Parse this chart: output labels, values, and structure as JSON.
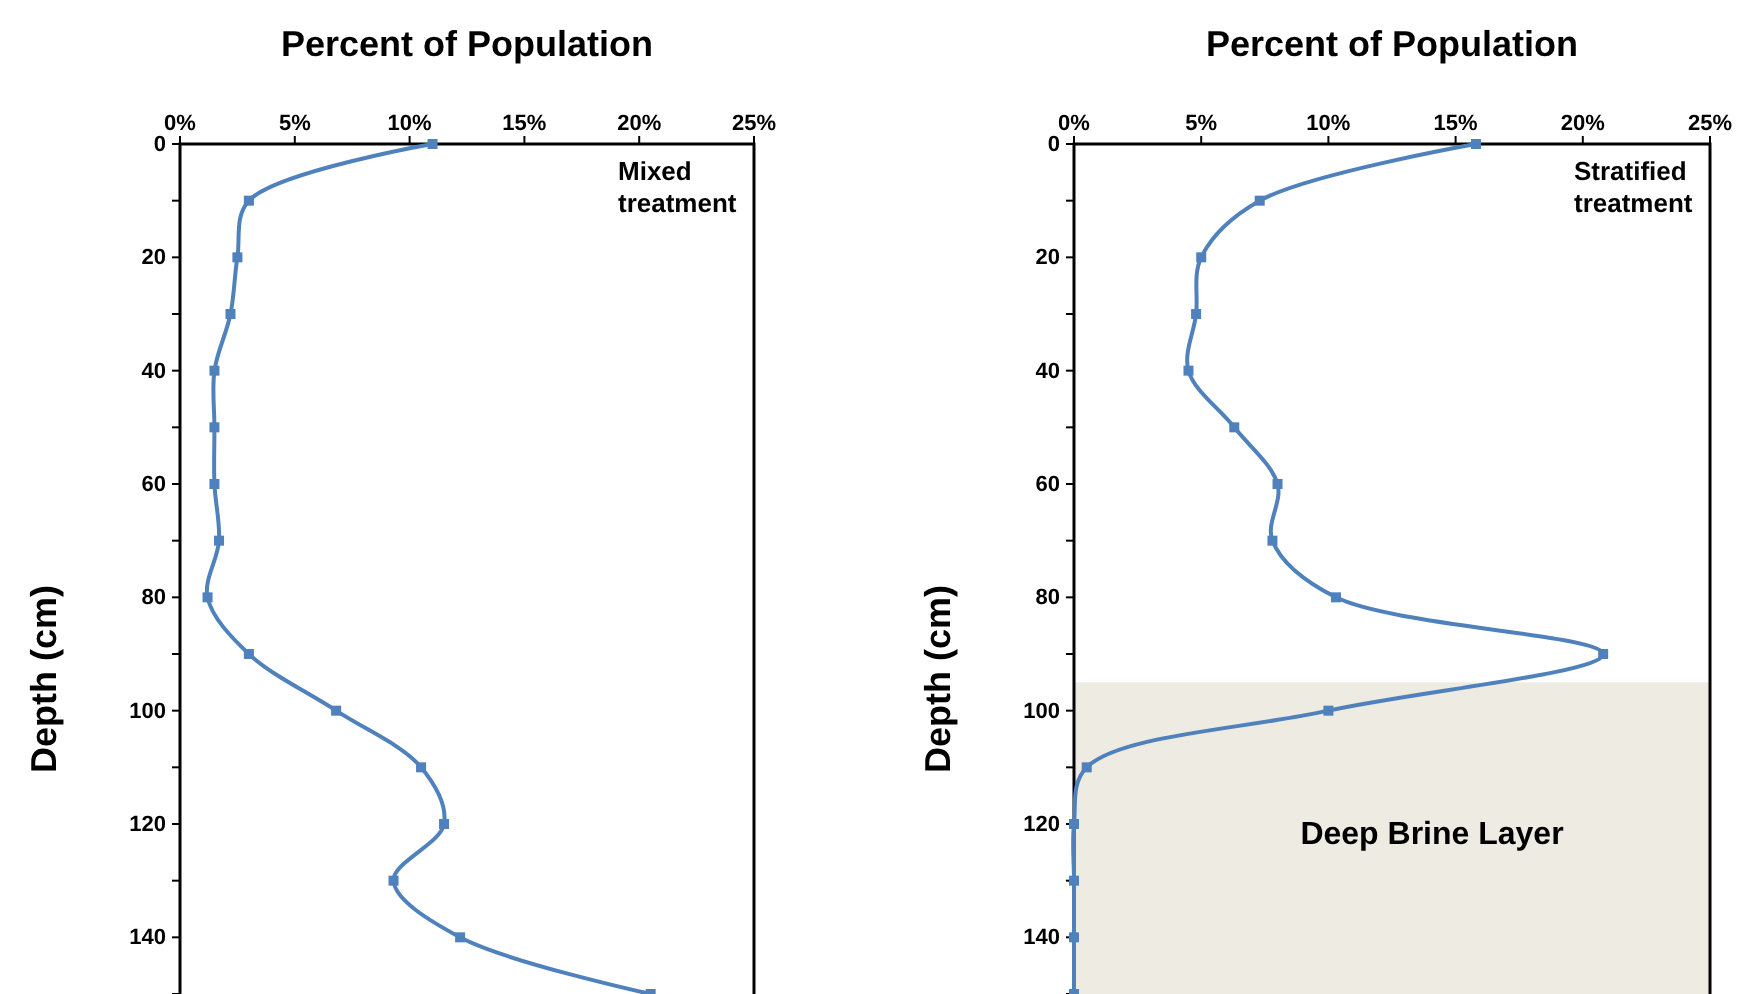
{
  "chart_data": [
    {
      "type": "line",
      "title": "Percent of Population",
      "ylabel": "Depth  (cm)",
      "annotations": [
        "Mixed\ntreatment"
      ],
      "marker": "square",
      "line_style": "solid",
      "grid": false,
      "series": [
        {
          "color": "#4f81bd",
          "x": [
            11,
            3,
            2.5,
            2.2,
            1.5,
            1.5,
            1.5,
            1.7,
            1.2,
            3,
            6.8,
            10.5,
            11.5,
            9.3,
            12.2,
            20.5
          ],
          "values": [
            0,
            10,
            20,
            30,
            40,
            50,
            60,
            70,
            80,
            90,
            100,
            110,
            120,
            130,
            140,
            150
          ]
        }
      ],
      "xlim": [
        0,
        25
      ],
      "xticks": [
        {
          "value": 0,
          "label": "0%"
        },
        {
          "value": 5,
          "label": "5%"
        },
        {
          "value": 10,
          "label": "10%"
        },
        {
          "value": 15,
          "label": "15%"
        },
        {
          "value": 20,
          "label": "20%"
        },
        {
          "value": 25,
          "label": "25%"
        }
      ],
      "ylim": [
        150,
        0
      ],
      "yticks": [
        0,
        {
          "value": 10,
          "label": null
        },
        20,
        {
          "value": 30,
          "label": null
        },
        40,
        {
          "value": 50,
          "label": null
        },
        60,
        {
          "value": 70,
          "label": null
        },
        80,
        {
          "value": 90,
          "label": null
        },
        100,
        {
          "value": 110,
          "label": null
        },
        120,
        {
          "value": 130,
          "label": null
        },
        140
      ]
    },
    {
      "type": "line",
      "title": "Percent of Population",
      "ylabel": "Depth  (cm)",
      "annotations": [
        "Stratified\ntreatment"
      ],
      "marker": "square",
      "line_style": "solid",
      "grid": false,
      "series": [
        {
          "color": "#4f81bd",
          "x": [
            15.8,
            7.3,
            5,
            4.8,
            4.5,
            6.3,
            8,
            7.8,
            10.3,
            20.8,
            10,
            0.5,
            0,
            0,
            0,
            0
          ],
          "values": [
            0,
            10,
            20,
            30,
            40,
            50,
            60,
            70,
            80,
            90,
            100,
            110,
            120,
            130,
            140,
            150
          ]
        }
      ],
      "bands": [
        {
          "axis": "y",
          "from": 95,
          "to": 150,
          "label": "Deep Brine Layer",
          "color": "#eeebe3"
        }
      ],
      "xlim": [
        0,
        25
      ],
      "xticks": [
        {
          "value": 0,
          "label": "0%"
        },
        {
          "value": 5,
          "label": "5%"
        },
        {
          "value": 10,
          "label": "10%"
        },
        {
          "value": 15,
          "label": "15%"
        },
        {
          "value": 20,
          "label": "20%"
        },
        {
          "value": 25,
          "label": "25%"
        }
      ],
      "ylim": [
        150,
        0
      ],
      "yticks": [
        0,
        {
          "value": 10,
          "label": null
        },
        20,
        {
          "value": 30,
          "label": null
        },
        40,
        {
          "value": 50,
          "label": null
        },
        60,
        {
          "value": 70,
          "label": null
        },
        80,
        {
          "value": 90,
          "label": null
        },
        100,
        {
          "value": 110,
          "label": null
        },
        120,
        {
          "value": 130,
          "label": null
        },
        140
      ]
    }
  ]
}
